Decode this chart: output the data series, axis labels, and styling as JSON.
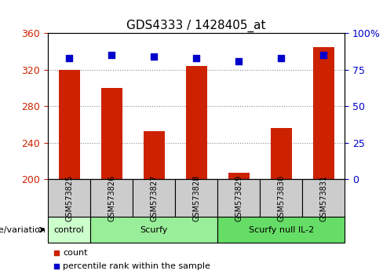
{
  "title": "GDS4333 / 1428405_at",
  "samples": [
    "GSM573825",
    "GSM573826",
    "GSM573827",
    "GSM573828",
    "GSM573829",
    "GSM573830",
    "GSM573831"
  ],
  "counts": [
    320,
    300,
    253,
    324,
    207,
    256,
    345
  ],
  "percentile_ranks": [
    83,
    85,
    84,
    83,
    81,
    83,
    85
  ],
  "ylim_left": [
    200,
    360
  ],
  "ylim_right": [
    0,
    100
  ],
  "yticks_left": [
    200,
    240,
    280,
    320,
    360
  ],
  "yticks_right": [
    0,
    25,
    50,
    75,
    100
  ],
  "ytick_labels_right": [
    "0",
    "25",
    "50",
    "75",
    "100%"
  ],
  "bar_color": "#cc2200",
  "dot_color": "#0000cc",
  "bar_width": 0.5,
  "groups": [
    {
      "label": "control",
      "start": 0,
      "end": 1,
      "color": "#ccffcc"
    },
    {
      "label": "Scurfy",
      "start": 1,
      "end": 4,
      "color": "#99ee99"
    },
    {
      "label": "Scurfy null IL-2",
      "start": 4,
      "end": 7,
      "color": "#66dd66"
    }
  ],
  "genotype_label": "genotype/variation",
  "legend_count_label": "count",
  "legend_percentile_label": "percentile rank within the sample",
  "tick_label_color_left": "#cc2200",
  "tick_label_color_right": "#0000cc",
  "background_color": "#ffffff",
  "plot_bg_color": "#ffffff",
  "sample_box_color": "#cccccc",
  "grid_color": "#888888",
  "grid_style": "dotted"
}
